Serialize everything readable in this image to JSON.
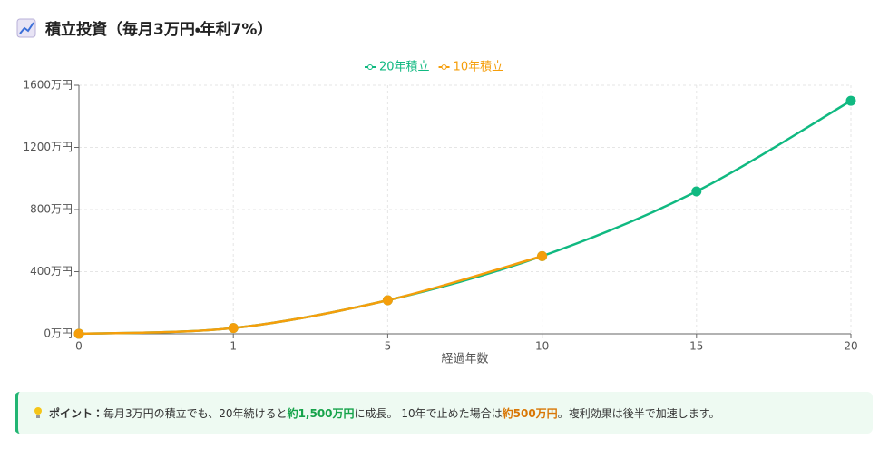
{
  "chart_data": {
    "type": "line",
    "title": "積立投資（毎月3万円・年利7%）",
    "x_label": "経過年数",
    "categories": [
      "0",
      "1",
      "5",
      "10",
      "15",
      "20"
    ],
    "series": [
      {
        "name": "20年積立",
        "color": "#10b981",
        "values": [
          0,
          37,
          216,
          500,
          917,
          1500
        ]
      },
      {
        "name": "10年積立",
        "color": "#f59e0b",
        "values": [
          0,
          37,
          216,
          500,
          null,
          null
        ]
      }
    ],
    "ylim": [
      0,
      1600
    ],
    "yticks": [
      {
        "value": 0,
        "label": "0万円"
      },
      {
        "value": 400,
        "label": "400万円"
      },
      {
        "value": 800,
        "label": "800万円"
      },
      {
        "value": 1200,
        "label": "1200万円"
      },
      {
        "value": 1600,
        "label": "1600万円"
      }
    ],
    "grid": true,
    "legend": "top"
  },
  "note": {
    "label": "ポイント：",
    "text1": "毎月3万円の積立でも、20年続けると",
    "highlight1": "約1,500万円",
    "text2": "に成長。 10年で止めた場合は",
    "highlight2": "約500万円",
    "text3": "。複利効果は後半で加速します。"
  }
}
